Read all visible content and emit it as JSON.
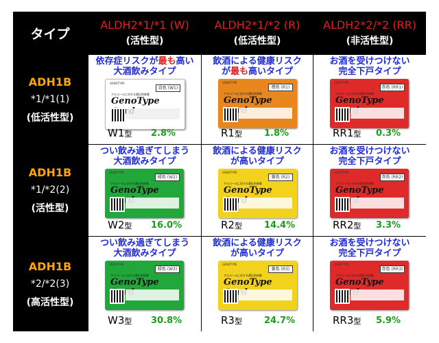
{
  "header": {
    "type_label": "タイプ",
    "cols": [
      {
        "genotype": "ALDH2*1/*1 (W)",
        "phenotype": "(活性型)"
      },
      {
        "genotype": "ALDH2*1/*2 (R)",
        "phenotype": "(低活性型)"
      },
      {
        "genotype": "ALDH2*2/*2 (RR)",
        "phenotype": "(非活性型)"
      }
    ]
  },
  "rows": [
    {
      "gene": "ADH1B",
      "genotype": "*1/*1(1)",
      "phenotype": "(低活性型)"
    },
    {
      "gene": "ADH1B",
      "genotype": "*1/*2(2)",
      "phenotype": "(活性型)"
    },
    {
      "gene": "ADH1B",
      "genotype": "*2/*2(3)",
      "phenotype": "(高活性型)"
    }
  ],
  "cells": [
    {
      "title_a": "依存症リスクが",
      "title_red": "最も",
      "title_b": "高い",
      "title_2": "大酒飲みタイプ",
      "card_code": "白色 (W1)",
      "type": "W1",
      "suffix": "型",
      "pct": "2.8%",
      "card_color": "#ffffff"
    },
    {
      "title_a": "飲酒による健康リスク",
      "title_red": "",
      "title_b": "",
      "title_2a": "が",
      "title_2red": "最も",
      "title_2b": "高いタイプ",
      "card_code": "橙色 (R1)",
      "type": "R1",
      "suffix": "型",
      "pct": "1.8%",
      "card_color": "#e8871e"
    },
    {
      "title_a": "お酒を受けつけない",
      "title_red": "",
      "title_b": "",
      "title_2": "完全下戸タイプ",
      "card_code": "赤色 (RR1)",
      "type": "RR1",
      "suffix": "型",
      "pct": "0.3%",
      "card_color": "#e02a2a"
    },
    {
      "title_a": "つい飲み過ぎてしまう",
      "title_red": "",
      "title_b": "",
      "title_2": "大酒飲みタイプ",
      "card_code": "緑色 (W2)",
      "type": "W2",
      "suffix": "型",
      "pct": "16.0%",
      "card_color": "#22a83a"
    },
    {
      "title_a": "飲酒による健康リスク",
      "title_red": "",
      "title_b": "",
      "title_2": "が高いタイプ",
      "card_code": "黄色 (R2)",
      "type": "R2",
      "suffix": "型",
      "pct": "14.4%",
      "card_color": "#f2d21c"
    },
    {
      "title_a": "お酒を受けつけない",
      "title_red": "",
      "title_b": "",
      "title_2": "完全下戸タイプ",
      "card_code": "赤色 (RR2)",
      "type": "RR2",
      "suffix": "型",
      "pct": "3.3%",
      "card_color": "#e02a2a"
    },
    {
      "title_a": "つい飲み過ぎてしまう",
      "title_red": "",
      "title_b": "",
      "title_2": "大酒飲みタイプ",
      "card_code": "緑色 (W3)",
      "type": "W3",
      "suffix": "型",
      "pct": "30.8%",
      "card_color": "#22a83a"
    },
    {
      "title_a": "飲酒による健康リスク",
      "title_red": "",
      "title_b": "",
      "title_2": "が高いタイプ",
      "card_code": "黄色 (R3)",
      "type": "R3",
      "suffix": "型",
      "pct": "24.7%",
      "card_color": "#f2d21c"
    },
    {
      "title_a": "お酒を受けつけない",
      "title_red": "",
      "title_b": "",
      "title_2": "完全下戸タイプ",
      "card_code": "赤色 (RR3)",
      "type": "RR3",
      "suffix": "型",
      "pct": "5.9%",
      "card_color": "#e02a2a"
    }
  ],
  "card": {
    "brand": "GENOTYPE",
    "subtitle": "アルコールに対する遺伝的体質",
    "name": "GenoType Card"
  },
  "colors": {
    "title_blue": "#1e2ad8",
    "title_red": "#e02020",
    "percent_green": "#1a9e1a",
    "row_gene_orange": "#ffa500"
  }
}
